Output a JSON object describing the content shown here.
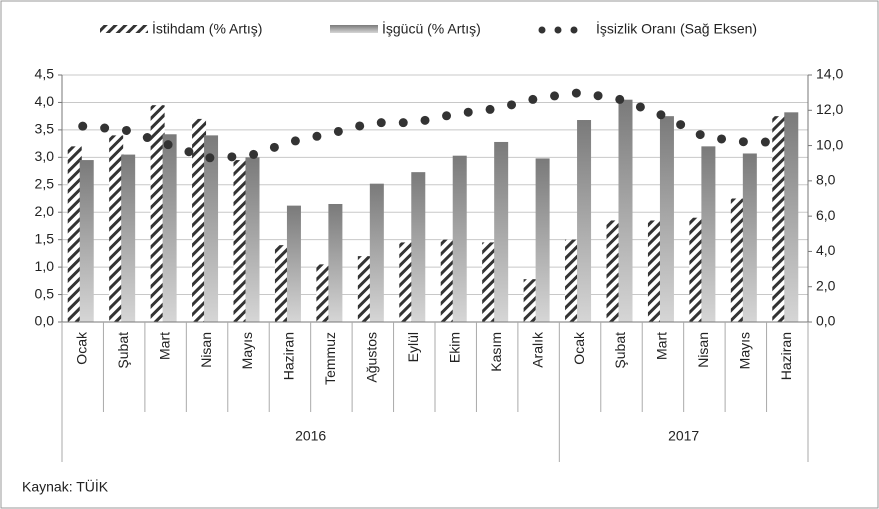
{
  "chart_data": {
    "type": "bar_line",
    "categories": [
      "Ocak",
      "Şubat",
      "Mart",
      "Nisan",
      "Mayıs",
      "Haziran",
      "Temmuz",
      "Ağustos",
      "Eylül",
      "Ekim",
      "Kasım",
      "Aralık",
      "Ocak",
      "Şubat",
      "Mart",
      "Nisan",
      "Mayıs",
      "Haziran"
    ],
    "years": [
      "2016",
      "2016",
      "2016",
      "2016",
      "2016",
      "2016",
      "2016",
      "2016",
      "2016",
      "2016",
      "2016",
      "2016",
      "2017",
      "2017",
      "2017",
      "2017",
      "2017",
      "2017"
    ],
    "series": [
      {
        "name": "İstihdam (% Artış)",
        "color": "#333333",
        "pattern": "hatch",
        "values": [
          3.2,
          3.4,
          3.95,
          3.7,
          2.95,
          1.4,
          1.05,
          1.2,
          1.45,
          1.5,
          1.45,
          0.78,
          1.5,
          1.85,
          1.85,
          1.9,
          2.25,
          3.75
        ]
      },
      {
        "name": "İşgücü (% Artış)",
        "color": "#7a7a7a",
        "values": [
          2.95,
          3.05,
          3.42,
          3.4,
          3.0,
          2.12,
          2.15,
          2.52,
          2.73,
          3.03,
          3.28,
          2.98,
          3.68,
          4.05,
          3.75,
          3.2,
          3.07,
          3.82
        ]
      },
      {
        "name": "İşsizlik Oranı (Sağ Eksen)",
        "color": "#333333",
        "axis": "y2",
        "values": [
          11.1,
          10.9,
          10.1,
          9.3,
          9.4,
          10.2,
          10.7,
          11.3,
          11.3,
          11.8,
          12.1,
          12.7,
          13.0,
          12.6,
          11.7,
          10.5,
          10.2,
          10.2
        ]
      }
    ],
    "ylim": [
      0,
      4.5
    ],
    "yticks": [
      {
        "value": 0,
        "label": "0,0"
      },
      {
        "value": 0.5,
        "label": "0,5"
      },
      {
        "value": 1,
        "label": "1,0"
      },
      {
        "value": 1.5,
        "label": "1,5"
      },
      {
        "value": 2,
        "label": "2,0"
      },
      {
        "value": 2.5,
        "label": "2,5"
      },
      {
        "value": 3,
        "label": "3,0"
      },
      {
        "value": 3.5,
        "label": "3,5"
      },
      {
        "value": 4,
        "label": "4,0"
      },
      {
        "value": 4.5,
        "label": "4,5"
      }
    ],
    "y2lim": [
      0,
      14
    ],
    "y2ticks": [
      {
        "value": 0,
        "label": "0,0"
      },
      {
        "value": 2,
        "label": "2,0"
      },
      {
        "value": 4,
        "label": "4,0"
      },
      {
        "value": 6,
        "label": "6,0"
      },
      {
        "value": 8,
        "label": "8,0"
      },
      {
        "value": 10,
        "label": "10,0"
      },
      {
        "value": 12,
        "label": "12,0"
      },
      {
        "value": 14,
        "label": "14,0"
      }
    ],
    "grid": true,
    "legend": "top",
    "source": "Kaynak: TÜİK"
  }
}
